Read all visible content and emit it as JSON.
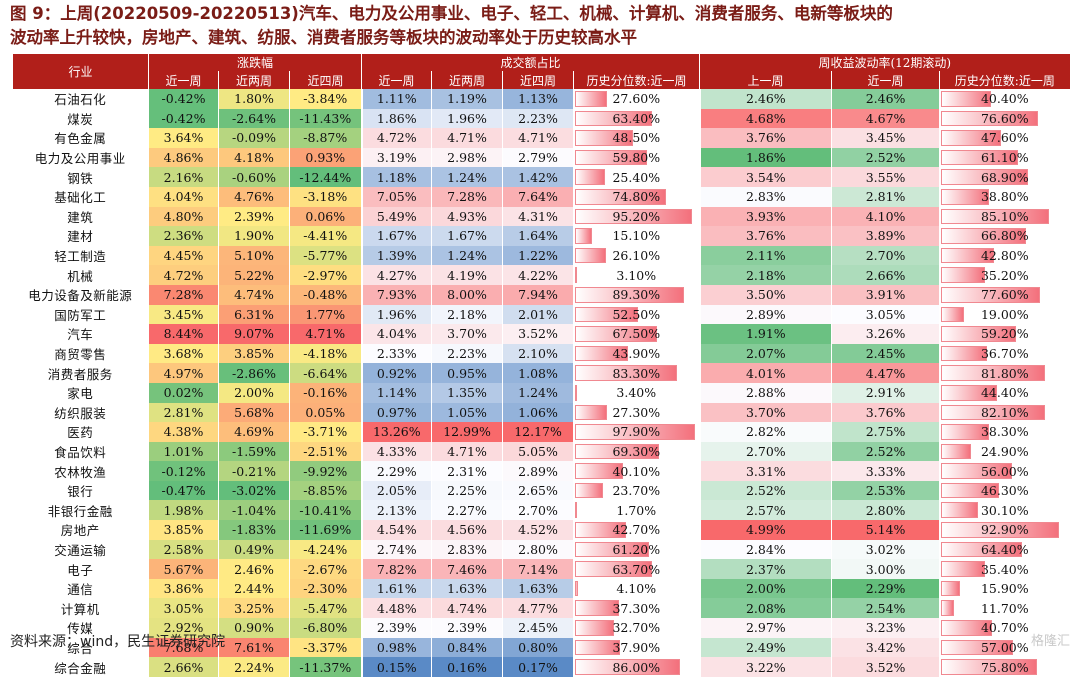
{
  "title": {
    "line1": "图 9：上周(20220509-20220513)汽车、电力及公用事业、电子、轻工、机械、计算机、消费者服务、电新等板块的",
    "line2": "波动率上升较快，房地产、建筑、纺服、消费者服务等板块的波动率处于历史较高水平"
  },
  "source": "资料来源：wind，民生证券研究院",
  "watermark": "格隆汇",
  "colors": {
    "header": "#b11f1a",
    "title": "#7a1c16",
    "pct_bar": "#f3707c"
  },
  "chart_data": {
    "type": "table",
    "headers": {
      "industry": "行业",
      "group_return": "涨跌幅",
      "group_turnover": "成交额占比",
      "group_volatility": "周收益波动率(12期滚动)",
      "sub": [
        "近一周",
        "近两周",
        "近四周",
        "近一周",
        "近两周",
        "近四周",
        "历史分位数:近一周",
        "上一周",
        "近一周",
        "历史分位数:近一周"
      ]
    },
    "rows": [
      {
        "industry": "石油石化",
        "ret_1w": -0.42,
        "ret_2w": 1.8,
        "ret_4w": -3.84,
        "to_1w": 1.11,
        "to_2w": 1.19,
        "to_4w": 1.13,
        "to_pct": 27.6,
        "vol_prev": 2.46,
        "vol_1w": 2.46,
        "vol_pct": 40.4
      },
      {
        "industry": "煤炭",
        "ret_1w": -0.42,
        "ret_2w": -2.64,
        "ret_4w": -11.43,
        "to_1w": 1.86,
        "to_2w": 1.96,
        "to_4w": 2.23,
        "to_pct": 63.4,
        "vol_prev": 4.68,
        "vol_1w": 4.67,
        "vol_pct": 76.6
      },
      {
        "industry": "有色金属",
        "ret_1w": 3.64,
        "ret_2w": -0.09,
        "ret_4w": -8.87,
        "to_1w": 4.72,
        "to_2w": 4.71,
        "to_4w": 4.71,
        "to_pct": 48.5,
        "vol_prev": 3.76,
        "vol_1w": 3.45,
        "vol_pct": 47.6
      },
      {
        "industry": "电力及公用事业",
        "ret_1w": 4.86,
        "ret_2w": 4.18,
        "ret_4w": 0.93,
        "to_1w": 3.19,
        "to_2w": 2.98,
        "to_4w": 2.79,
        "to_pct": 59.8,
        "vol_prev": 1.86,
        "vol_1w": 2.52,
        "vol_pct": 61.1
      },
      {
        "industry": "钢铁",
        "ret_1w": 2.16,
        "ret_2w": -0.6,
        "ret_4w": -12.44,
        "to_1w": 1.18,
        "to_2w": 1.24,
        "to_4w": 1.42,
        "to_pct": 25.4,
        "vol_prev": 3.54,
        "vol_1w": 3.55,
        "vol_pct": 68.9
      },
      {
        "industry": "基础化工",
        "ret_1w": 4.04,
        "ret_2w": 4.76,
        "ret_4w": -3.18,
        "to_1w": 7.05,
        "to_2w": 7.28,
        "to_4w": 7.64,
        "to_pct": 74.8,
        "vol_prev": 2.83,
        "vol_1w": 2.81,
        "vol_pct": 38.8
      },
      {
        "industry": "建筑",
        "ret_1w": 4.8,
        "ret_2w": 2.39,
        "ret_4w": 0.06,
        "to_1w": 5.49,
        "to_2w": 4.93,
        "to_4w": 4.31,
        "to_pct": 95.2,
        "vol_prev": 3.93,
        "vol_1w": 4.1,
        "vol_pct": 85.1
      },
      {
        "industry": "建材",
        "ret_1w": 2.36,
        "ret_2w": 1.9,
        "ret_4w": -4.41,
        "to_1w": 1.67,
        "to_2w": 1.67,
        "to_4w": 1.64,
        "to_pct": 15.1,
        "vol_prev": 3.76,
        "vol_1w": 3.89,
        "vol_pct": 66.8
      },
      {
        "industry": "轻工制造",
        "ret_1w": 4.45,
        "ret_2w": 5.1,
        "ret_4w": -5.77,
        "to_1w": 1.39,
        "to_2w": 1.24,
        "to_4w": 1.22,
        "to_pct": 26.1,
        "vol_prev": 2.11,
        "vol_1w": 2.7,
        "vol_pct": 42.8
      },
      {
        "industry": "机械",
        "ret_1w": 4.72,
        "ret_2w": 5.22,
        "ret_4w": -2.97,
        "to_1w": 4.27,
        "to_2w": 4.19,
        "to_4w": 4.22,
        "to_pct": 3.1,
        "vol_prev": 2.18,
        "vol_1w": 2.66,
        "vol_pct": 35.2
      },
      {
        "industry": "电力设备及新能源",
        "ret_1w": 7.28,
        "ret_2w": 4.74,
        "ret_4w": -0.48,
        "to_1w": 7.93,
        "to_2w": 8.0,
        "to_4w": 7.94,
        "to_pct": 89.3,
        "vol_prev": 3.5,
        "vol_1w": 3.91,
        "vol_pct": 77.6
      },
      {
        "industry": "国防军工",
        "ret_1w": 3.45,
        "ret_2w": 6.31,
        "ret_4w": 1.77,
        "to_1w": 1.96,
        "to_2w": 2.18,
        "to_4w": 2.01,
        "to_pct": 52.5,
        "vol_prev": 2.89,
        "vol_1w": 3.05,
        "vol_pct": 19.0
      },
      {
        "industry": "汽车",
        "ret_1w": 8.44,
        "ret_2w": 9.07,
        "ret_4w": 4.71,
        "to_1w": 4.04,
        "to_2w": 3.7,
        "to_4w": 3.52,
        "to_pct": 67.5,
        "vol_prev": 1.91,
        "vol_1w": 3.26,
        "vol_pct": 59.2
      },
      {
        "industry": "商贸零售",
        "ret_1w": 3.68,
        "ret_2w": 3.85,
        "ret_4w": -4.18,
        "to_1w": 2.33,
        "to_2w": 2.23,
        "to_4w": 2.1,
        "to_pct": 43.9,
        "vol_prev": 2.07,
        "vol_1w": 2.45,
        "vol_pct": 36.7
      },
      {
        "industry": "消费者服务",
        "ret_1w": 4.97,
        "ret_2w": -2.86,
        "ret_4w": -6.64,
        "to_1w": 0.92,
        "to_2w": 0.95,
        "to_4w": 1.08,
        "to_pct": 83.3,
        "vol_prev": 4.01,
        "vol_1w": 4.47,
        "vol_pct": 81.8
      },
      {
        "industry": "家电",
        "ret_1w": 0.02,
        "ret_2w": 2.0,
        "ret_4w": -0.16,
        "to_1w": 1.14,
        "to_2w": 1.35,
        "to_4w": 1.24,
        "to_pct": 3.4,
        "vol_prev": 2.88,
        "vol_1w": 2.91,
        "vol_pct": 44.4
      },
      {
        "industry": "纺织服装",
        "ret_1w": 2.81,
        "ret_2w": 5.68,
        "ret_4w": 0.05,
        "to_1w": 0.97,
        "to_2w": 1.05,
        "to_4w": 1.06,
        "to_pct": 27.3,
        "vol_prev": 3.7,
        "vol_1w": 3.76,
        "vol_pct": 82.1
      },
      {
        "industry": "医药",
        "ret_1w": 4.38,
        "ret_2w": 4.69,
        "ret_4w": -3.71,
        "to_1w": 13.26,
        "to_2w": 12.99,
        "to_4w": 12.17,
        "to_pct": 97.9,
        "vol_prev": 2.82,
        "vol_1w": 2.75,
        "vol_pct": 38.3
      },
      {
        "industry": "食品饮料",
        "ret_1w": 1.01,
        "ret_2w": -1.59,
        "ret_4w": -2.51,
        "to_1w": 4.33,
        "to_2w": 4.71,
        "to_4w": 5.05,
        "to_pct": 69.3,
        "vol_prev": 2.7,
        "vol_1w": 2.52,
        "vol_pct": 24.9
      },
      {
        "industry": "农林牧渔",
        "ret_1w": -0.12,
        "ret_2w": -0.21,
        "ret_4w": -9.92,
        "to_1w": 2.29,
        "to_2w": 2.31,
        "to_4w": 2.89,
        "to_pct": 40.1,
        "vol_prev": 3.31,
        "vol_1w": 3.33,
        "vol_pct": 56.0
      },
      {
        "industry": "银行",
        "ret_1w": -0.47,
        "ret_2w": -3.02,
        "ret_4w": -8.85,
        "to_1w": 2.05,
        "to_2w": 2.25,
        "to_4w": 2.65,
        "to_pct": 23.7,
        "vol_prev": 2.52,
        "vol_1w": 2.53,
        "vol_pct": 46.3
      },
      {
        "industry": "非银行金融",
        "ret_1w": 1.98,
        "ret_2w": -1.04,
        "ret_4w": -10.41,
        "to_1w": 2.13,
        "to_2w": 2.27,
        "to_4w": 2.7,
        "to_pct": 1.7,
        "vol_prev": 2.57,
        "vol_1w": 2.8,
        "vol_pct": 30.1
      },
      {
        "industry": "房地产",
        "ret_1w": 3.85,
        "ret_2w": -1.83,
        "ret_4w": -11.69,
        "to_1w": 4.54,
        "to_2w": 4.56,
        "to_4w": 4.52,
        "to_pct": 42.7,
        "vol_prev": 4.99,
        "vol_1w": 5.14,
        "vol_pct": 92.9
      },
      {
        "industry": "交通运输",
        "ret_1w": 2.58,
        "ret_2w": 0.49,
        "ret_4w": -4.24,
        "to_1w": 2.74,
        "to_2w": 2.83,
        "to_4w": 2.8,
        "to_pct": 61.2,
        "vol_prev": 2.84,
        "vol_1w": 3.02,
        "vol_pct": 64.4
      },
      {
        "industry": "电子",
        "ret_1w": 5.67,
        "ret_2w": 2.46,
        "ret_4w": -2.67,
        "to_1w": 7.82,
        "to_2w": 7.46,
        "to_4w": 7.14,
        "to_pct": 63.7,
        "vol_prev": 2.37,
        "vol_1w": 3.0,
        "vol_pct": 35.4
      },
      {
        "industry": "通信",
        "ret_1w": 3.86,
        "ret_2w": 2.44,
        "ret_4w": -2.3,
        "to_1w": 1.61,
        "to_2w": 1.63,
        "to_4w": 1.63,
        "to_pct": 4.1,
        "vol_prev": 2.0,
        "vol_1w": 2.29,
        "vol_pct": 15.9
      },
      {
        "industry": "计算机",
        "ret_1w": 3.05,
        "ret_2w": 3.25,
        "ret_4w": -5.47,
        "to_1w": 4.48,
        "to_2w": 4.74,
        "to_4w": 4.77,
        "to_pct": 37.3,
        "vol_prev": 2.08,
        "vol_1w": 2.54,
        "vol_pct": 11.7
      },
      {
        "industry": "传媒",
        "ret_1w": 2.92,
        "ret_2w": 0.9,
        "ret_4w": -6.8,
        "to_1w": 2.39,
        "to_2w": 2.39,
        "to_4w": 2.45,
        "to_pct": 32.7,
        "vol_prev": 2.97,
        "vol_1w": 3.23,
        "vol_pct": 40.7
      },
      {
        "industry": "综合",
        "ret_1w": 7.68,
        "ret_2w": 7.61,
        "ret_4w": -3.37,
        "to_1w": 0.98,
        "to_2w": 0.84,
        "to_4w": 0.8,
        "to_pct": 37.9,
        "vol_prev": 2.49,
        "vol_1w": 3.42,
        "vol_pct": 57.0
      },
      {
        "industry": "综合金融",
        "ret_1w": 2.66,
        "ret_2w": 2.24,
        "ret_4w": -11.37,
        "to_1w": 0.15,
        "to_2w": 0.16,
        "to_4w": 0.17,
        "to_pct": 86.0,
        "vol_prev": 3.22,
        "vol_1w": 3.52,
        "vol_pct": 75.8
      }
    ]
  }
}
